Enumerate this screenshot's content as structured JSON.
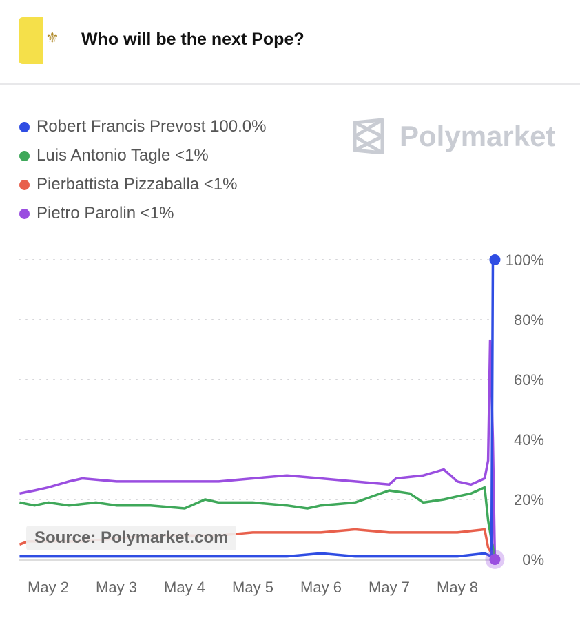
{
  "header": {
    "title": "Who will be the next Pope?",
    "flag_color": "#f5e04a"
  },
  "watermark": "Polymarket",
  "source": "Source: Polymarket.com",
  "legend": [
    {
      "label": "Robert Francis Prevost 100.0%",
      "color": "#2f4de3"
    },
    {
      "label": "Luis Antonio Tagle <1%",
      "color": "#3fa85a"
    },
    {
      "label": "Pierbattista Pizzaballa <1%",
      "color": "#e8604c"
    },
    {
      "label": "Pietro Parolin <1%",
      "color": "#9a4ee0"
    }
  ],
  "chart_data": {
    "type": "line",
    "title": "Who will be the next Pope?",
    "xlabel": "",
    "ylabel": "",
    "x_ticks": [
      "May 2",
      "May 3",
      "May 4",
      "May 5",
      "May 6",
      "May 7",
      "May 8"
    ],
    "y_ticks": [
      "0%",
      "20%",
      "40%",
      "60%",
      "80%",
      "100%"
    ],
    "ylim": [
      0,
      100
    ],
    "xlim": [
      -0.42,
      6.55
    ],
    "grid": "horizontal-dotted",
    "series": [
      {
        "name": "Pietro Parolin",
        "color": "#9a4ee0",
        "points": [
          [
            -0.42,
            22
          ],
          [
            -0.2,
            23
          ],
          [
            0,
            24
          ],
          [
            0.3,
            26
          ],
          [
            0.5,
            27
          ],
          [
            1,
            26
          ],
          [
            1.5,
            26
          ],
          [
            2,
            26
          ],
          [
            2.5,
            26
          ],
          [
            3,
            27
          ],
          [
            3.5,
            28
          ],
          [
            4,
            27
          ],
          [
            4.5,
            26
          ],
          [
            5,
            25
          ],
          [
            5.1,
            27
          ],
          [
            5.5,
            28
          ],
          [
            5.8,
            30
          ],
          [
            6,
            26
          ],
          [
            6.2,
            25
          ],
          [
            6.4,
            27
          ],
          [
            6.45,
            33
          ],
          [
            6.48,
            73
          ],
          [
            6.52,
            40
          ],
          [
            6.55,
            0
          ]
        ]
      },
      {
        "name": "Luis Antonio Tagle",
        "color": "#3fa85a",
        "points": [
          [
            -0.42,
            19
          ],
          [
            -0.2,
            18
          ],
          [
            0,
            19
          ],
          [
            0.3,
            18
          ],
          [
            0.7,
            19
          ],
          [
            1,
            18
          ],
          [
            1.5,
            18
          ],
          [
            2,
            17
          ],
          [
            2.3,
            20
          ],
          [
            2.5,
            19
          ],
          [
            3,
            19
          ],
          [
            3.5,
            18
          ],
          [
            3.8,
            17
          ],
          [
            4,
            18
          ],
          [
            4.5,
            19
          ],
          [
            5,
            23
          ],
          [
            5.3,
            22
          ],
          [
            5.5,
            19
          ],
          [
            5.8,
            20
          ],
          [
            6,
            21
          ],
          [
            6.2,
            22
          ],
          [
            6.4,
            24
          ],
          [
            6.45,
            13
          ],
          [
            6.55,
            0
          ]
        ]
      },
      {
        "name": "Pierbattista Pizzaballa",
        "color": "#e8604c",
        "points": [
          [
            -0.42,
            5
          ],
          [
            -0.3,
            6
          ],
          [
            0,
            6
          ],
          [
            0.5,
            6
          ],
          [
            1,
            7
          ],
          [
            1.5,
            8
          ],
          [
            2,
            8
          ],
          [
            2.5,
            8
          ],
          [
            3,
            9
          ],
          [
            3.5,
            9
          ],
          [
            4,
            9
          ],
          [
            4.5,
            10
          ],
          [
            5,
            9
          ],
          [
            5.5,
            9
          ],
          [
            6,
            9
          ],
          [
            6.4,
            10
          ],
          [
            6.45,
            4
          ],
          [
            6.55,
            0
          ]
        ]
      },
      {
        "name": "Robert Francis Prevost",
        "color": "#2f4de3",
        "points": [
          [
            -0.42,
            1
          ],
          [
            0,
            1
          ],
          [
            1,
            1
          ],
          [
            2,
            1
          ],
          [
            3,
            1
          ],
          [
            3.5,
            1
          ],
          [
            4,
            2
          ],
          [
            4.5,
            1
          ],
          [
            5,
            1
          ],
          [
            5.5,
            1
          ],
          [
            6,
            1
          ],
          [
            6.4,
            2
          ],
          [
            6.5,
            1
          ],
          [
            6.52,
            100
          ],
          [
            6.55,
            100
          ]
        ]
      }
    ]
  }
}
